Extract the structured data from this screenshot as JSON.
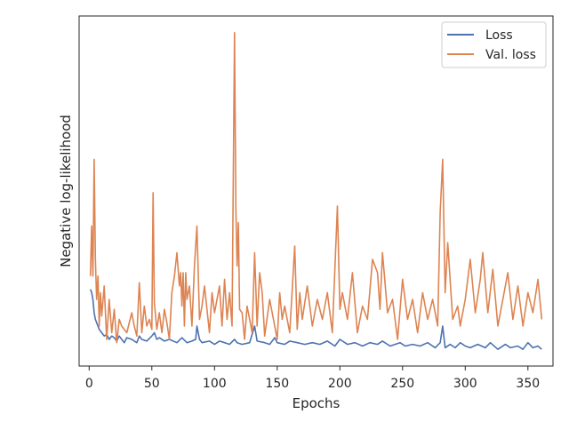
{
  "chart_data": {
    "type": "line",
    "title": "",
    "xlabel": "Epochs",
    "ylabel": "Negative log-likelihood",
    "xlim": [
      -8,
      370
    ],
    "ylim": [
      -0.02,
      1.03
    ],
    "x_ticks": [
      0,
      50,
      100,
      150,
      200,
      250,
      300,
      350
    ],
    "y_ticks_visible": false,
    "grid": false,
    "legend_position": "top-right",
    "series": [
      {
        "name": "Loss",
        "color": "#4c72b0",
        "x": [
          1,
          2,
          3,
          4,
          5,
          6,
          7,
          8,
          10,
          12,
          14,
          16,
          18,
          20,
          22,
          24,
          26,
          28,
          30,
          34,
          38,
          40,
          42,
          46,
          50,
          52,
          54,
          56,
          60,
          64,
          70,
          74,
          78,
          82,
          85,
          86,
          88,
          90,
          96,
          100,
          104,
          108,
          112,
          116,
          118,
          122,
          128,
          132,
          134,
          140,
          144,
          148,
          150,
          156,
          160,
          166,
          172,
          178,
          184,
          190,
          196,
          200,
          206,
          212,
          218,
          224,
          230,
          234,
          240,
          248,
          252,
          258,
          264,
          270,
          276,
          280,
          282,
          284,
          288,
          292,
          296,
          300,
          304,
          310,
          316,
          320,
          326,
          332,
          336,
          342,
          346,
          350,
          354,
          358,
          361
        ],
        "values": [
          0.21,
          0.2,
          0.18,
          0.14,
          0.12,
          0.11,
          0.1,
          0.09,
          0.08,
          0.07,
          0.075,
          0.06,
          0.07,
          0.065,
          0.055,
          0.07,
          0.06,
          0.05,
          0.065,
          0.06,
          0.05,
          0.07,
          0.06,
          0.055,
          0.07,
          0.08,
          0.06,
          0.065,
          0.055,
          0.06,
          0.05,
          0.065,
          0.05,
          0.055,
          0.06,
          0.1,
          0.06,
          0.05,
          0.055,
          0.045,
          0.055,
          0.05,
          0.045,
          0.06,
          0.05,
          0.045,
          0.05,
          0.1,
          0.055,
          0.05,
          0.045,
          0.065,
          0.05,
          0.045,
          0.055,
          0.05,
          0.045,
          0.05,
          0.045,
          0.055,
          0.04,
          0.06,
          0.045,
          0.05,
          0.04,
          0.05,
          0.045,
          0.055,
          0.04,
          0.05,
          0.04,
          0.045,
          0.04,
          0.05,
          0.035,
          0.05,
          0.1,
          0.035,
          0.045,
          0.035,
          0.05,
          0.04,
          0.035,
          0.045,
          0.035,
          0.05,
          0.03,
          0.045,
          0.035,
          0.04,
          0.03,
          0.05,
          0.035,
          0.04,
          0.03
        ]
      },
      {
        "name": "Val. loss",
        "color": "#dd8452",
        "x": [
          1,
          2,
          3,
          4,
          5,
          6,
          7,
          8,
          9,
          10,
          12,
          14,
          16,
          18,
          20,
          22,
          24,
          26,
          30,
          34,
          36,
          38,
          40,
          42,
          44,
          46,
          48,
          50,
          51,
          52,
          54,
          56,
          58,
          60,
          62,
          64,
          66,
          68,
          70,
          72,
          73,
          74,
          75,
          76,
          77,
          78,
          80,
          82,
          84,
          86,
          88,
          90,
          92,
          96,
          98,
          100,
          104,
          106,
          108,
          110,
          112,
          114,
          115,
          116,
          117,
          118,
          119,
          120,
          122,
          124,
          126,
          128,
          130,
          132,
          134,
          136,
          138,
          140,
          144,
          148,
          150,
          152,
          154,
          156,
          160,
          164,
          166,
          168,
          170,
          174,
          178,
          182,
          186,
          190,
          194,
          198,
          200,
          202,
          206,
          210,
          214,
          218,
          222,
          226,
          230,
          232,
          234,
          238,
          242,
          246,
          250,
          254,
          258,
          262,
          266,
          270,
          274,
          278,
          280,
          282,
          284,
          286,
          290,
          294,
          296,
          300,
          304,
          308,
          312,
          314,
          318,
          322,
          326,
          330,
          334,
          338,
          342,
          346,
          350,
          354,
          358,
          361
        ],
        "values": [
          0.25,
          0.4,
          0.25,
          0.6,
          0.3,
          0.18,
          0.25,
          0.1,
          0.2,
          0.13,
          0.22,
          0.06,
          0.18,
          0.08,
          0.15,
          0.05,
          0.12,
          0.1,
          0.08,
          0.14,
          0.1,
          0.07,
          0.23,
          0.08,
          0.16,
          0.1,
          0.12,
          0.09,
          0.5,
          0.17,
          0.09,
          0.14,
          0.08,
          0.15,
          0.11,
          0.06,
          0.2,
          0.25,
          0.32,
          0.22,
          0.26,
          0.16,
          0.26,
          0.1,
          0.26,
          0.18,
          0.22,
          0.1,
          0.28,
          0.4,
          0.12,
          0.16,
          0.22,
          0.08,
          0.2,
          0.14,
          0.22,
          0.1,
          0.24,
          0.12,
          0.2,
          0.1,
          0.55,
          0.98,
          0.45,
          0.28,
          0.41,
          0.15,
          0.14,
          0.06,
          0.16,
          0.12,
          0.08,
          0.32,
          0.1,
          0.26,
          0.2,
          0.07,
          0.18,
          0.1,
          0.06,
          0.2,
          0.12,
          0.16,
          0.08,
          0.34,
          0.09,
          0.2,
          0.12,
          0.22,
          0.1,
          0.18,
          0.12,
          0.2,
          0.08,
          0.46,
          0.15,
          0.2,
          0.12,
          0.26,
          0.08,
          0.16,
          0.12,
          0.3,
          0.26,
          0.15,
          0.32,
          0.14,
          0.18,
          0.06,
          0.24,
          0.12,
          0.18,
          0.08,
          0.2,
          0.12,
          0.18,
          0.1,
          0.44,
          0.6,
          0.2,
          0.35,
          0.12,
          0.16,
          0.1,
          0.18,
          0.3,
          0.14,
          0.24,
          0.32,
          0.14,
          0.27,
          0.1,
          0.18,
          0.26,
          0.12,
          0.22,
          0.1,
          0.2,
          0.14,
          0.24,
          0.12
        ]
      }
    ]
  }
}
